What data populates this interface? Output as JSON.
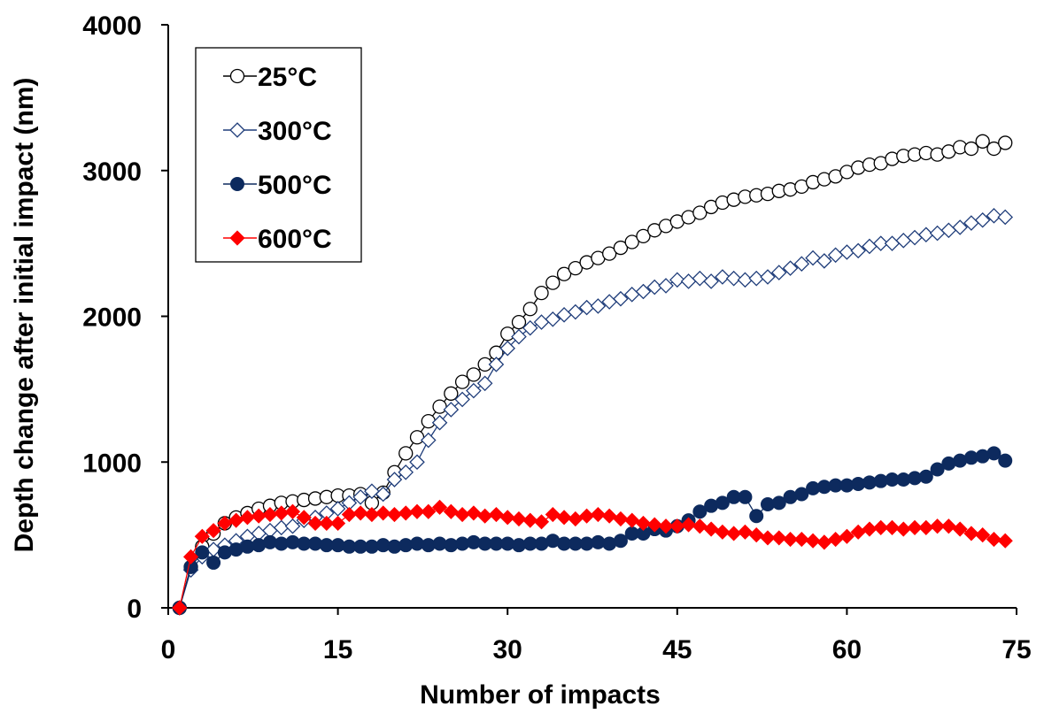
{
  "chart_data": {
    "type": "line",
    "xlabel": "Number of impacts",
    "ylabel": "Depth change after initial impact (nm)",
    "xlim": [
      0,
      75
    ],
    "ylim": [
      0,
      4000
    ],
    "xticks": [
      0,
      15,
      30,
      45,
      60,
      75
    ],
    "yticks": [
      0,
      1000,
      2000,
      3000,
      4000
    ],
    "grid": false,
    "legend_position": "top-left",
    "series": [
      {
        "name": "25°C",
        "marker": "open-circle",
        "color": "#000000",
        "x": [
          1,
          2,
          3,
          4,
          5,
          6,
          7,
          8,
          9,
          10,
          11,
          12,
          13,
          14,
          15,
          16,
          17,
          18,
          19,
          20,
          21,
          22,
          23,
          24,
          25,
          26,
          27,
          28,
          29,
          30,
          31,
          32,
          33,
          34,
          35,
          36,
          37,
          38,
          39,
          40,
          41,
          42,
          43,
          44,
          45,
          46,
          47,
          48,
          49,
          50,
          51,
          52,
          53,
          54,
          55,
          56,
          57,
          58,
          59,
          60,
          61,
          62,
          63,
          64,
          65,
          66,
          67,
          68,
          69,
          70,
          71,
          72,
          73,
          74
        ],
        "y": [
          0,
          280,
          420,
          510,
          580,
          620,
          650,
          680,
          700,
          720,
          730,
          740,
          750,
          760,
          770,
          770,
          780,
          720,
          790,
          930,
          1060,
          1170,
          1280,
          1380,
          1470,
          1550,
          1600,
          1670,
          1750,
          1880,
          1960,
          2050,
          2160,
          2230,
          2290,
          2330,
          2370,
          2400,
          2430,
          2470,
          2510,
          2550,
          2590,
          2620,
          2650,
          2680,
          2710,
          2750,
          2780,
          2800,
          2820,
          2830,
          2840,
          2860,
          2870,
          2890,
          2920,
          2940,
          2960,
          2990,
          3020,
          3040,
          3050,
          3080,
          3100,
          3110,
          3120,
          3110,
          3130,
          3160,
          3150,
          3200,
          3150,
          3190
        ]
      },
      {
        "name": "300°C",
        "marker": "open-diamond",
        "color": "#1f3d7a",
        "x": [
          1,
          2,
          3,
          4,
          5,
          6,
          7,
          8,
          9,
          10,
          11,
          12,
          13,
          14,
          15,
          16,
          17,
          18,
          19,
          20,
          21,
          22,
          23,
          24,
          25,
          26,
          27,
          28,
          29,
          30,
          31,
          32,
          33,
          34,
          35,
          36,
          37,
          38,
          39,
          40,
          41,
          42,
          43,
          44,
          45,
          46,
          47,
          48,
          49,
          50,
          51,
          52,
          53,
          54,
          55,
          56,
          57,
          58,
          59,
          60,
          61,
          62,
          63,
          64,
          65,
          66,
          67,
          68,
          69,
          70,
          71,
          72,
          73,
          74
        ],
        "y": [
          0,
          260,
          350,
          400,
          430,
          460,
          490,
          510,
          530,
          550,
          560,
          600,
          620,
          650,
          680,
          720,
          760,
          800,
          780,
          880,
          930,
          1000,
          1150,
          1270,
          1360,
          1430,
          1490,
          1540,
          1670,
          1780,
          1860,
          1920,
          1960,
          1980,
          2010,
          2030,
          2060,
          2070,
          2100,
          2120,
          2150,
          2170,
          2200,
          2210,
          2250,
          2240,
          2260,
          2240,
          2270,
          2260,
          2250,
          2260,
          2270,
          2300,
          2330,
          2360,
          2400,
          2380,
          2420,
          2440,
          2450,
          2480,
          2500,
          2500,
          2520,
          2540,
          2560,
          2570,
          2590,
          2610,
          2640,
          2660,
          2690,
          2680
        ]
      },
      {
        "name": "500°C",
        "marker": "filled-circle",
        "color": "#0d2a5e",
        "x": [
          1,
          2,
          3,
          4,
          5,
          6,
          7,
          8,
          9,
          10,
          11,
          12,
          13,
          14,
          15,
          16,
          17,
          18,
          19,
          20,
          21,
          22,
          23,
          24,
          25,
          26,
          27,
          28,
          29,
          30,
          31,
          32,
          33,
          34,
          35,
          36,
          37,
          38,
          39,
          40,
          41,
          42,
          43,
          44,
          45,
          46,
          47,
          48,
          49,
          50,
          51,
          52,
          53,
          54,
          55,
          56,
          57,
          58,
          59,
          60,
          61,
          62,
          63,
          64,
          65,
          66,
          67,
          68,
          69,
          70,
          71,
          72,
          73,
          74
        ],
        "y": [
          0,
          280,
          380,
          310,
          380,
          400,
          420,
          430,
          450,
          440,
          450,
          440,
          440,
          430,
          430,
          420,
          420,
          420,
          430,
          420,
          430,
          440,
          430,
          440,
          430,
          440,
          450,
          440,
          440,
          440,
          430,
          440,
          440,
          460,
          440,
          440,
          440,
          450,
          440,
          460,
          510,
          510,
          540,
          530,
          560,
          600,
          660,
          700,
          720,
          760,
          760,
          630,
          710,
          720,
          760,
          780,
          820,
          830,
          840,
          840,
          850,
          860,
          870,
          880,
          880,
          890,
          900,
          950,
          990,
          1010,
          1030,
          1040,
          1060,
          1010
        ]
      },
      {
        "name": "600°C",
        "marker": "filled-diamond",
        "color": "#ff0000",
        "x": [
          1,
          2,
          3,
          4,
          5,
          6,
          7,
          8,
          9,
          10,
          11,
          12,
          13,
          14,
          15,
          16,
          17,
          18,
          19,
          20,
          21,
          22,
          23,
          24,
          25,
          26,
          27,
          28,
          29,
          30,
          31,
          32,
          33,
          34,
          35,
          36,
          37,
          38,
          39,
          40,
          41,
          42,
          43,
          44,
          45,
          46,
          47,
          48,
          49,
          50,
          51,
          52,
          53,
          54,
          55,
          56,
          57,
          58,
          59,
          60,
          61,
          62,
          63,
          64,
          65,
          66,
          67,
          68,
          69,
          70,
          71,
          72,
          73,
          74
        ],
        "y": [
          0,
          350,
          490,
          530,
          580,
          600,
          620,
          630,
          640,
          650,
          660,
          620,
          580,
          580,
          580,
          640,
          650,
          640,
          650,
          640,
          650,
          660,
          660,
          690,
          660,
          640,
          650,
          630,
          640,
          620,
          610,
          600,
          590,
          640,
          620,
          610,
          630,
          640,
          630,
          610,
          600,
          580,
          570,
          560,
          560,
          570,
          560,
          540,
          520,
          510,
          520,
          500,
          480,
          480,
          470,
          470,
          460,
          450,
          470,
          490,
          520,
          540,
          550,
          550,
          540,
          550,
          550,
          560,
          560,
          540,
          510,
          500,
          470,
          460
        ]
      }
    ]
  }
}
